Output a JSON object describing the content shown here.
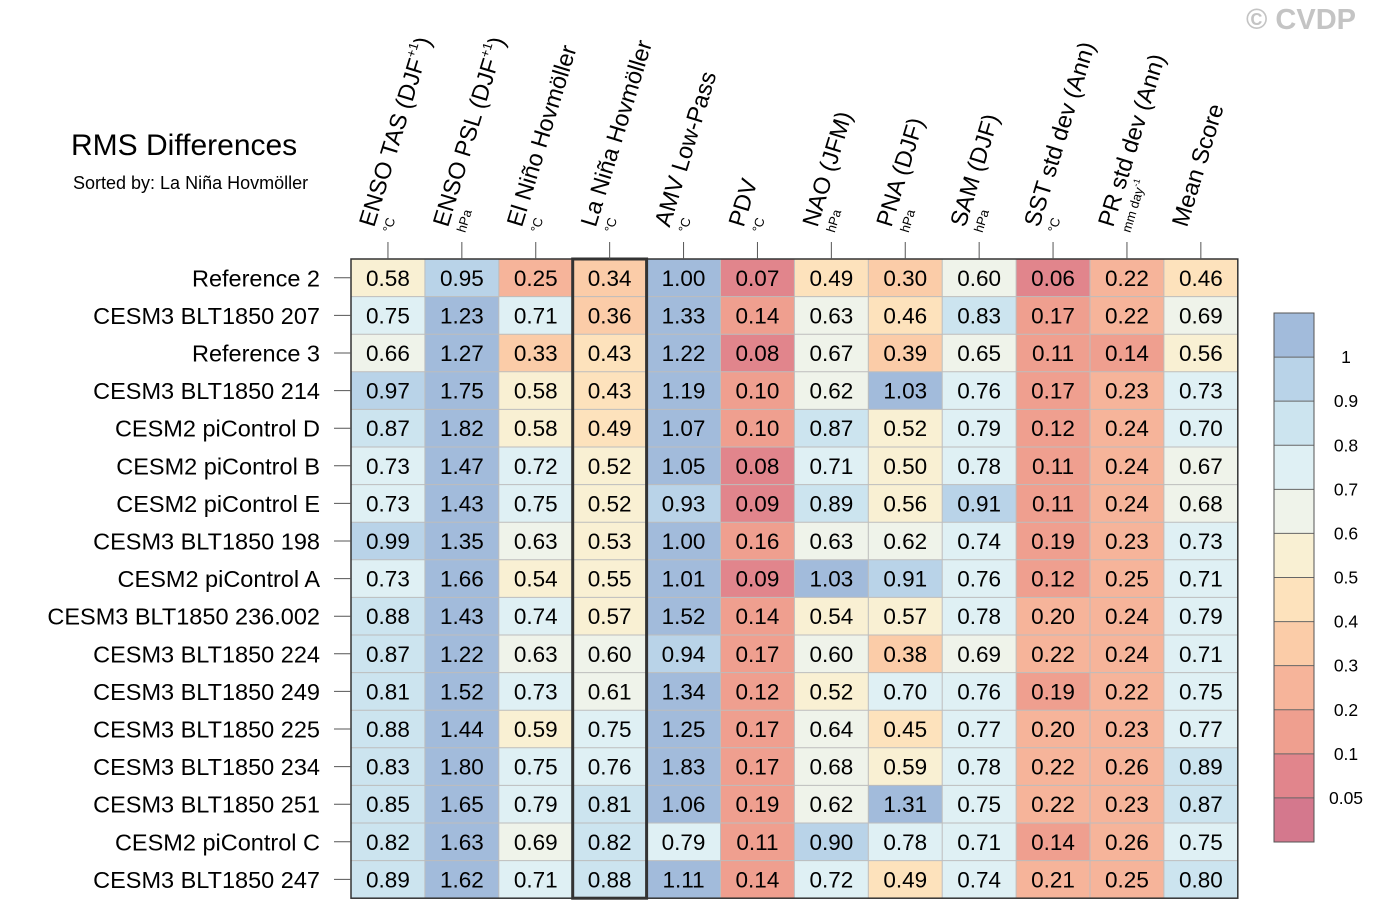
{
  "watermark": "© CVDP",
  "chart_data": {
    "type": "heatmap",
    "title": "RMS Differences",
    "subtitle": "Sorted by: La Niña Hovmöller",
    "highlighted_column": "La Niña Hovmöller",
    "columns": [
      {
        "name": "ENSO TAS (DJF",
        "sup": "+1",
        "suffix": ")",
        "unit": "°C"
      },
      {
        "name": "ENSO PSL (DJF",
        "sup": "+1",
        "suffix": ")",
        "unit": "hPa"
      },
      {
        "name": "El Niño Hovmöller",
        "sup": "",
        "suffix": "",
        "unit": "°C"
      },
      {
        "name": "La Niña Hovmöller",
        "sup": "",
        "suffix": "",
        "unit": "°C"
      },
      {
        "name": "AMV Low-Pass",
        "sup": "",
        "suffix": "",
        "unit": "°C"
      },
      {
        "name": "PDV",
        "sup": "",
        "suffix": "",
        "unit": "°C"
      },
      {
        "name": "NAO (JFM)",
        "sup": "",
        "suffix": "",
        "unit": "hPa"
      },
      {
        "name": "PNA (DJF)",
        "sup": "",
        "suffix": "",
        "unit": "hPa"
      },
      {
        "name": "SAM (DJF)",
        "sup": "",
        "suffix": "",
        "unit": "hPa"
      },
      {
        "name": "SST std dev (Ann)",
        "sup": "",
        "suffix": "",
        "unit": "°C"
      },
      {
        "name": "PR std dev (Ann)",
        "sup": "",
        "suffix": "",
        "unit": "mm day",
        "unit_sup": "-1"
      },
      {
        "name": "Mean Score",
        "sup": "",
        "suffix": "",
        "unit": ""
      }
    ],
    "rows": [
      {
        "label": "Reference 2",
        "values": [
          0.58,
          0.95,
          0.25,
          0.34,
          1.0,
          0.07,
          0.49,
          0.3,
          0.6,
          0.06,
          0.22,
          0.46
        ]
      },
      {
        "label": "CESM3 BLT1850 207",
        "values": [
          0.75,
          1.23,
          0.71,
          0.36,
          1.33,
          0.14,
          0.63,
          0.46,
          0.83,
          0.17,
          0.22,
          0.69
        ]
      },
      {
        "label": "Reference 3",
        "values": [
          0.66,
          1.27,
          0.33,
          0.43,
          1.22,
          0.08,
          0.67,
          0.39,
          0.65,
          0.11,
          0.14,
          0.56
        ]
      },
      {
        "label": "CESM3 BLT1850 214",
        "values": [
          0.97,
          1.75,
          0.58,
          0.43,
          1.19,
          0.1,
          0.62,
          1.03,
          0.76,
          0.17,
          0.23,
          0.73
        ]
      },
      {
        "label": "CESM2 piControl D",
        "values": [
          0.87,
          1.82,
          0.58,
          0.49,
          1.07,
          0.1,
          0.87,
          0.52,
          0.79,
          0.12,
          0.24,
          0.7
        ]
      },
      {
        "label": "CESM2 piControl B",
        "values": [
          0.73,
          1.47,
          0.72,
          0.52,
          1.05,
          0.08,
          0.71,
          0.5,
          0.78,
          0.11,
          0.24,
          0.67
        ]
      },
      {
        "label": "CESM2 piControl E",
        "values": [
          0.73,
          1.43,
          0.75,
          0.52,
          0.93,
          0.09,
          0.89,
          0.56,
          0.91,
          0.11,
          0.24,
          0.68
        ]
      },
      {
        "label": "CESM3 BLT1850 198",
        "values": [
          0.99,
          1.35,
          0.63,
          0.53,
          1.0,
          0.16,
          0.63,
          0.62,
          0.74,
          0.19,
          0.23,
          0.73
        ]
      },
      {
        "label": "CESM2 piControl A",
        "values": [
          0.73,
          1.66,
          0.54,
          0.55,
          1.01,
          0.09,
          1.03,
          0.91,
          0.76,
          0.12,
          0.25,
          0.71
        ]
      },
      {
        "label": "CESM3 BLT1850 236.002",
        "values": [
          0.88,
          1.43,
          0.74,
          0.57,
          1.52,
          0.14,
          0.54,
          0.57,
          0.78,
          0.2,
          0.24,
          0.79
        ]
      },
      {
        "label": "CESM3 BLT1850 224",
        "values": [
          0.87,
          1.22,
          0.63,
          0.6,
          0.94,
          0.17,
          0.6,
          0.38,
          0.69,
          0.22,
          0.24,
          0.71
        ]
      },
      {
        "label": "CESM3 BLT1850 249",
        "values": [
          0.81,
          1.52,
          0.73,
          0.61,
          1.34,
          0.12,
          0.52,
          0.7,
          0.76,
          0.19,
          0.22,
          0.75
        ]
      },
      {
        "label": "CESM3 BLT1850 225",
        "values": [
          0.88,
          1.44,
          0.59,
          0.75,
          1.25,
          0.17,
          0.64,
          0.45,
          0.77,
          0.2,
          0.23,
          0.77
        ]
      },
      {
        "label": "CESM3 BLT1850 234",
        "values": [
          0.83,
          1.8,
          0.75,
          0.76,
          1.83,
          0.17,
          0.68,
          0.59,
          0.78,
          0.22,
          0.26,
          0.89
        ]
      },
      {
        "label": "CESM3 BLT1850 251",
        "values": [
          0.85,
          1.65,
          0.79,
          0.81,
          1.06,
          0.19,
          0.62,
          1.31,
          0.75,
          0.22,
          0.23,
          0.87
        ]
      },
      {
        "label": "CESM2 piControl C",
        "values": [
          0.82,
          1.63,
          0.69,
          0.82,
          0.79,
          0.11,
          0.9,
          0.78,
          0.71,
          0.14,
          0.26,
          0.75
        ]
      },
      {
        "label": "CESM3 BLT1850 247",
        "values": [
          0.89,
          1.62,
          0.71,
          0.88,
          1.11,
          0.14,
          0.72,
          0.49,
          0.74,
          0.21,
          0.25,
          0.8
        ]
      }
    ],
    "colorbar": {
      "levels": [
        0.05,
        0.1,
        0.2,
        0.3,
        0.4,
        0.5,
        0.6,
        0.7,
        0.8,
        0.9,
        1
      ],
      "labels": [
        "0.05",
        "0.1",
        "0.2",
        "0.3",
        "0.4",
        "0.5",
        "0.6",
        "0.7",
        "0.8",
        "0.9",
        "1"
      ],
      "colors": [
        "#d4788d",
        "#e1858c",
        "#ef9f8f",
        "#f6b49a",
        "#fbcca8",
        "#fde2bc",
        "#f9f0d3",
        "#eff3ea",
        "#dff0f4",
        "#cce4ef",
        "#b9d3e8",
        "#a2bbdb"
      ]
    }
  }
}
